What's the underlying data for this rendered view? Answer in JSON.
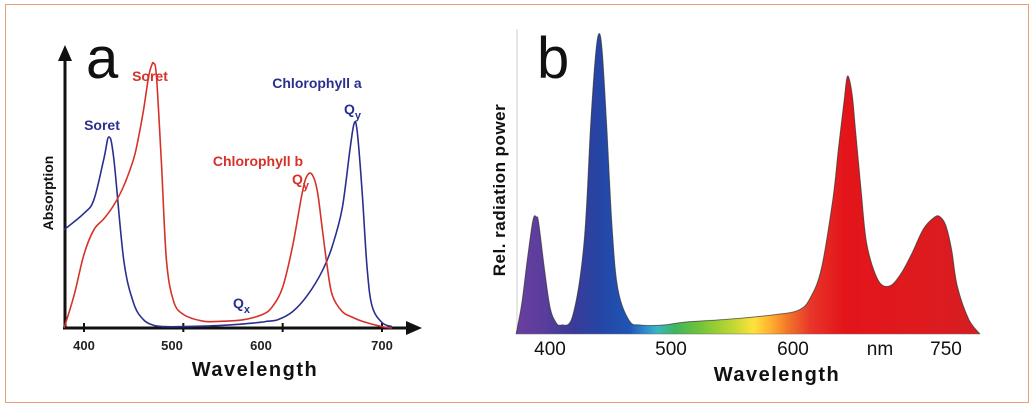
{
  "panels": {
    "a": {
      "letter": "a",
      "ylabel": "Absorption",
      "xlabel": "Wavelength",
      "ticks": [
        "400",
        "500",
        "600",
        "700"
      ],
      "annotations": {
        "soret_b": "Soret",
        "soret_a": "Soret",
        "chl_a": "Chlorophyll a",
        "chl_b": "Chlorophyll b",
        "qy_a_main": "Q",
        "qy_a_sub": "y",
        "qy_b_main": "Q",
        "qy_b_sub": "y",
        "qx_main": "Q",
        "qx_sub": "x"
      }
    },
    "b": {
      "letter": "b",
      "ylabel": "Rel. radiation power",
      "xlabel": "Wavelength",
      "ticks": [
        "400",
        "500",
        "600",
        "nm",
        "750"
      ]
    }
  },
  "chart_data": [
    {
      "type": "line",
      "panel": "a",
      "xlabel": "Wavelength",
      "ylabel": "Absorption",
      "xlim": [
        380,
        720
      ],
      "x_ticks": [
        400,
        500,
        600,
        700
      ],
      "y_ticks": [],
      "series": [
        {
          "name": "Chlorophyll a",
          "color": "#2a2f8e",
          "x": [
            380,
            400,
            410,
            420,
            425,
            430,
            440,
            450,
            460,
            470,
            480,
            500,
            540,
            570,
            580,
            585,
            595,
            610,
            625,
            640,
            650,
            660,
            668,
            672,
            675,
            680,
            685,
            690,
            700,
            710
          ],
          "y": [
            0.36,
            0.42,
            0.47,
            0.62,
            0.7,
            0.62,
            0.25,
            0.09,
            0.03,
            0.01,
            0.005,
            0.005,
            0.01,
            0.018,
            0.022,
            0.025,
            0.03,
            0.06,
            0.12,
            0.21,
            0.3,
            0.44,
            0.66,
            0.75,
            0.72,
            0.5,
            0.22,
            0.08,
            0.02,
            0.005
          ]
        },
        {
          "name": "Chlorophyll b",
          "color": "#d6322a",
          "x": [
            380,
            390,
            400,
            410,
            420,
            430,
            440,
            450,
            455,
            460,
            465,
            468,
            470,
            473,
            478,
            483,
            490,
            500,
            520,
            540,
            560,
            580,
            590,
            600,
            610,
            620,
            625,
            630,
            635,
            640,
            645,
            650,
            660,
            670,
            680,
            700,
            710
          ],
          "y": [
            0.0,
            0.12,
            0.27,
            0.36,
            0.4,
            0.45,
            0.52,
            0.62,
            0.7,
            0.8,
            0.92,
            0.96,
            0.97,
            0.92,
            0.6,
            0.25,
            0.1,
            0.05,
            0.025,
            0.025,
            0.03,
            0.05,
            0.08,
            0.15,
            0.3,
            0.5,
            0.56,
            0.56,
            0.5,
            0.36,
            0.22,
            0.12,
            0.06,
            0.04,
            0.025,
            0.005,
            0.0
          ]
        }
      ]
    },
    {
      "type": "area",
      "panel": "b",
      "xlabel": "Wavelength",
      "ylabel": "Rel. radiation power",
      "xlim": [
        370,
        780
      ],
      "x_ticks": [
        400,
        500,
        600,
        750
      ],
      "tick_labels": [
        "400",
        "500",
        "600",
        "nm",
        "750"
      ],
      "series": [
        {
          "name": "",
          "x": [
            370,
            375,
            380,
            385,
            388,
            390,
            395,
            400,
            405,
            410,
            420,
            430,
            436,
            440,
            443,
            446,
            450,
            455,
            460,
            470,
            480,
            500,
            520,
            560,
            600,
            620,
            630,
            640,
            650,
            655,
            660,
            663,
            667,
            670,
            675,
            680,
            690,
            700,
            710,
            720,
            730,
            740,
            745,
            750,
            755,
            760,
            770,
            780
          ],
          "y": [
            0.0,
            0.1,
            0.25,
            0.38,
            0.39,
            0.37,
            0.22,
            0.09,
            0.04,
            0.03,
            0.06,
            0.3,
            0.7,
            0.92,
            1.0,
            0.95,
            0.7,
            0.35,
            0.15,
            0.045,
            0.03,
            0.03,
            0.04,
            0.05,
            0.065,
            0.08,
            0.12,
            0.22,
            0.45,
            0.62,
            0.78,
            0.86,
            0.8,
            0.68,
            0.48,
            0.3,
            0.18,
            0.16,
            0.2,
            0.27,
            0.35,
            0.39,
            0.39,
            0.36,
            0.28,
            0.16,
            0.05,
            0.0
          ]
        }
      ]
    }
  ]
}
